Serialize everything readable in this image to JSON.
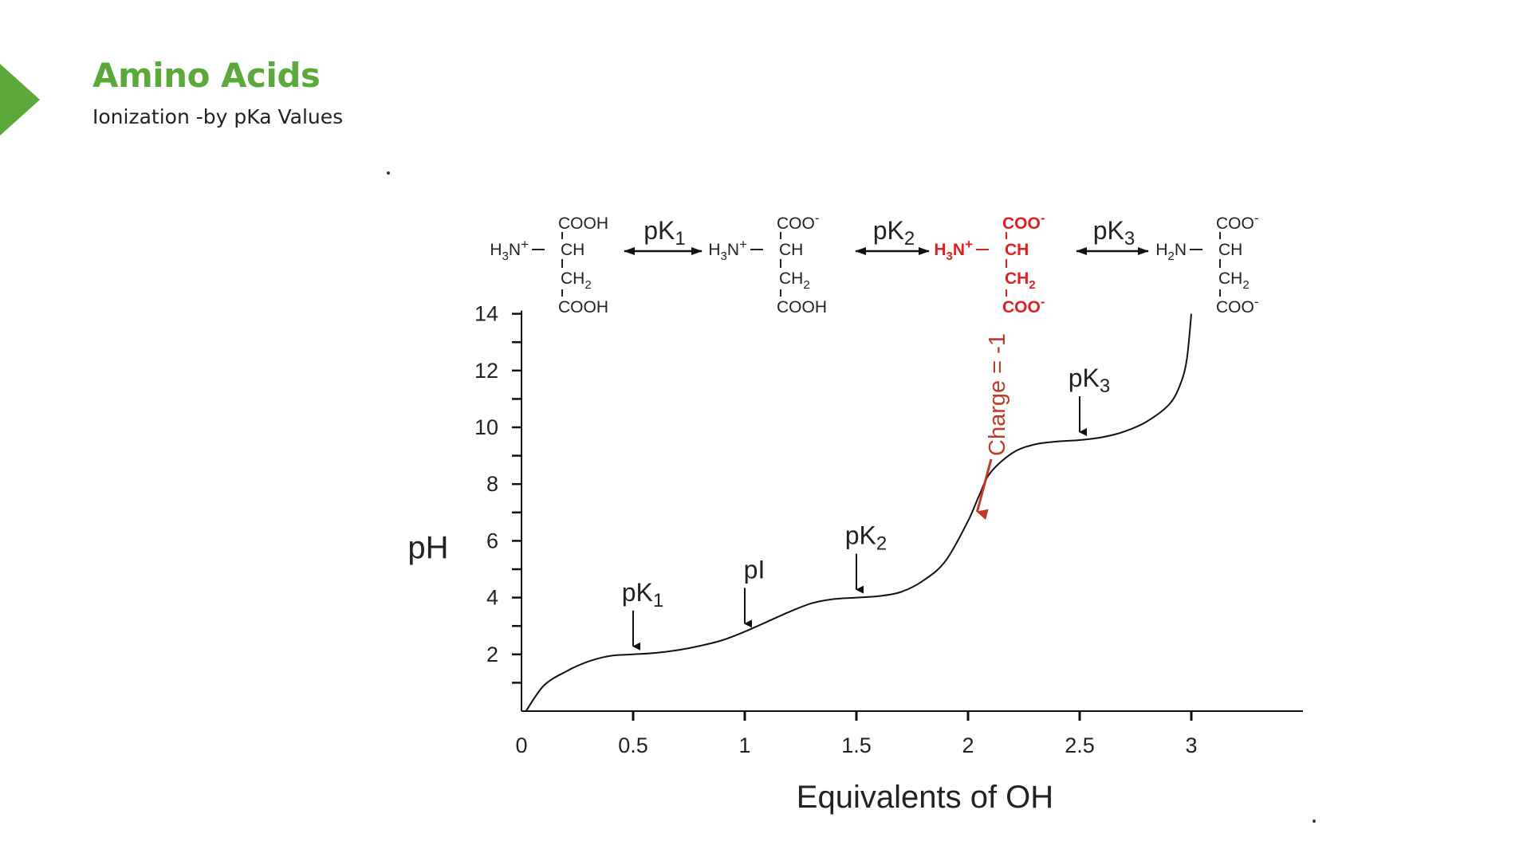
{
  "slide": {
    "title": "Amino Acids",
    "subtitle": "Ionization -by pKa Values",
    "accent_color": "#5aa93a",
    "marker_icon": "triangle-arrow-icon"
  },
  "chart_data": {
    "type": "line",
    "title": "",
    "xlabel": "Equivalents of OH",
    "ylabel": "pH",
    "xlim": [
      0,
      3.5
    ],
    "ylim": [
      0,
      14
    ],
    "x_ticks": [
      0,
      0.5,
      1,
      1.5,
      2,
      2.5,
      3
    ],
    "x_tick_labels": [
      "0",
      "0.5",
      "1",
      "1.5",
      "2",
      "2.5",
      "3"
    ],
    "y_ticks": [
      2,
      4,
      6,
      8,
      10,
      12,
      14
    ],
    "y_tick_labels": [
      "2",
      "4",
      "6",
      "8",
      "10",
      "12",
      "14"
    ],
    "y_minor_step": 1,
    "grid": false,
    "series": [
      {
        "color": "#111111",
        "x": [
          0.02,
          0.1,
          0.2,
          0.3,
          0.4,
          0.5,
          0.6,
          0.7,
          0.8,
          0.9,
          1.0,
          1.1,
          1.2,
          1.3,
          1.4,
          1.5,
          1.6,
          1.7,
          1.8,
          1.9,
          2.0,
          2.05,
          2.1,
          2.2,
          2.3,
          2.4,
          2.5,
          2.6,
          2.7,
          2.8,
          2.9,
          2.95,
          2.98,
          3.0
        ],
        "y": [
          0.0,
          0.9,
          1.4,
          1.75,
          1.95,
          2.0,
          2.05,
          2.15,
          2.3,
          2.5,
          2.8,
          3.15,
          3.5,
          3.8,
          3.95,
          4.0,
          4.05,
          4.2,
          4.6,
          5.3,
          6.7,
          7.6,
          8.4,
          9.1,
          9.4,
          9.5,
          9.55,
          9.65,
          9.85,
          10.2,
          10.8,
          11.5,
          12.4,
          14.0
        ]
      }
    ],
    "annotations": [
      {
        "label": "pK",
        "sub": "1",
        "x": 0.5,
        "y": 2.0
      },
      {
        "label": "pI",
        "sub": "",
        "x": 1.0,
        "y": 2.8
      },
      {
        "label": "pK",
        "sub": "2",
        "x": 1.5,
        "y": 4.0
      },
      {
        "label": "pK",
        "sub": "3",
        "x": 2.5,
        "y": 9.55
      }
    ],
    "charge_annotation": {
      "text": "Charge = -1",
      "color": "#c0392b",
      "x": 2.03,
      "y": 6.8
    },
    "equilibrium_labels": [
      {
        "label": "pK",
        "sub": "1"
      },
      {
        "label": "pK",
        "sub": "2"
      },
      {
        "label": "pK",
        "sub": "3"
      }
    ],
    "structures": [
      {
        "name": "fully-protonated",
        "color": "#222222",
        "top": "COOH",
        "amine": "H3N+",
        "ch": "CH",
        "ch2": "CH2",
        "bottom": "COOH"
      },
      {
        "name": "alpha-deprotonated",
        "color": "#222222",
        "top": "COO-",
        "amine": "H3N+",
        "ch": "CH",
        "ch2": "CH2",
        "bottom": "COOH"
      },
      {
        "name": "net-charge-minus-one",
        "color": "#e02020",
        "top": "COO-",
        "amine": "H3N+",
        "ch": "CH",
        "ch2": "CH2",
        "bottom": "COO-"
      },
      {
        "name": "fully-deprotonated",
        "color": "#222222",
        "top": "COO-",
        "amine": "H2N",
        "ch": "CH",
        "ch2": "CH2",
        "bottom": "COO-"
      }
    ]
  }
}
